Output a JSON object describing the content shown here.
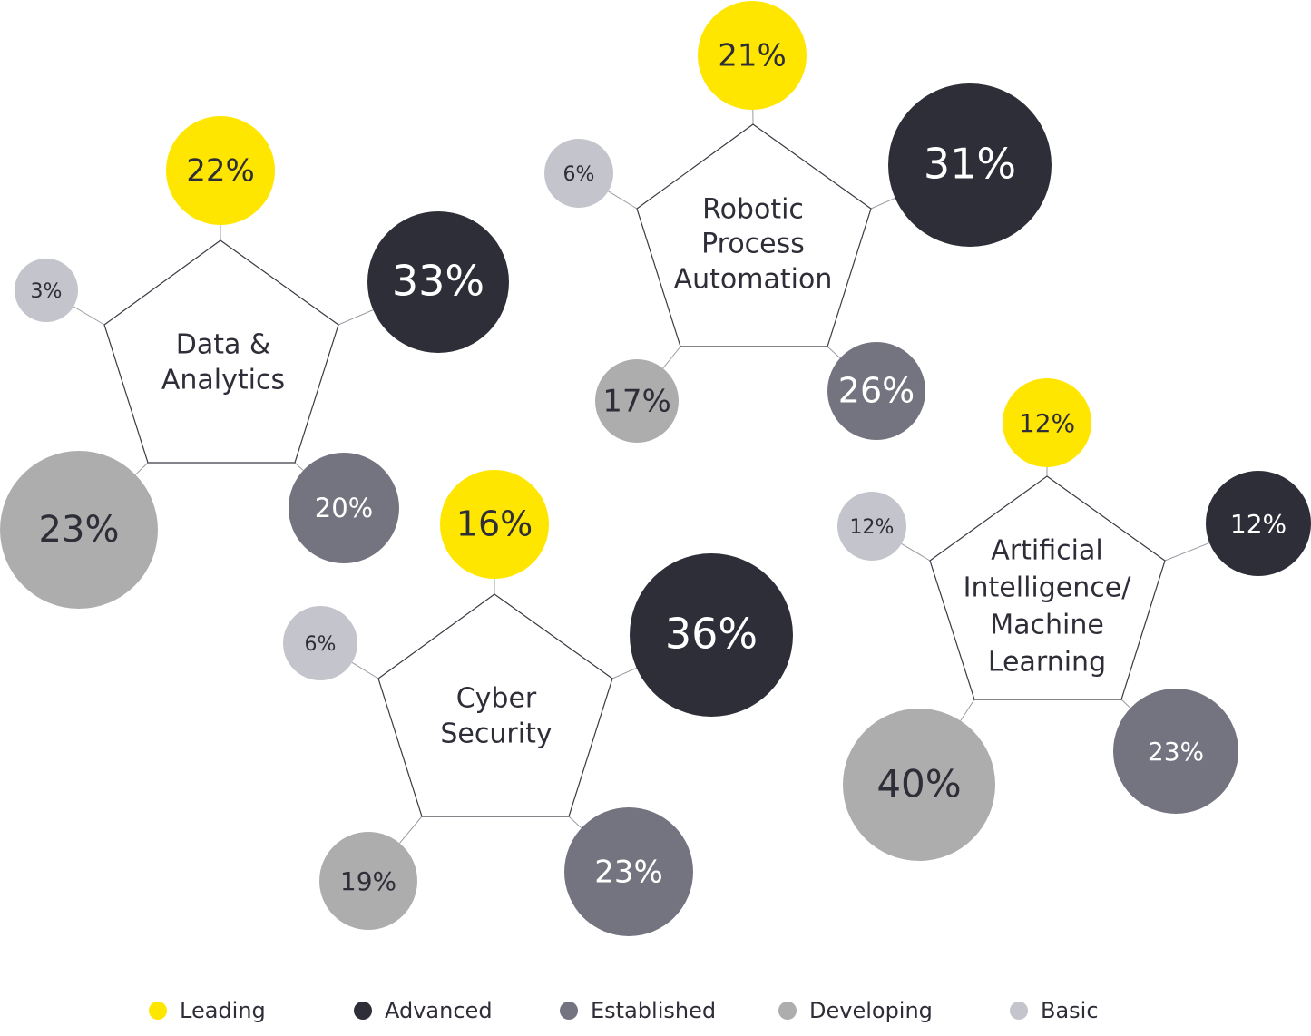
{
  "colors": {
    "Leading": "#FFE600",
    "Advanced": "#2E2E38",
    "Established": "#747480",
    "Developing": "#ADADAD",
    "Basic": "#C4C4CD"
  },
  "legend": [
    "Leading",
    "Advanced",
    "Established",
    "Developing",
    "Basic"
  ],
  "chart_data": {
    "type": "bubble-pentagon",
    "categories": [
      "Leading",
      "Advanced",
      "Established",
      "Developing",
      "Basic"
    ],
    "groups": [
      {
        "name": "Data & Analytics",
        "label_lines": [
          "Data &",
          "Analytics"
        ],
        "values": [
          22,
          33,
          20,
          23,
          3
        ]
      },
      {
        "name": "Robotic Process Automation",
        "label_lines": [
          "Robotic",
          "Process",
          "Automation"
        ],
        "values": [
          21,
          31,
          26,
          17,
          6
        ]
      },
      {
        "name": "Cyber Security",
        "label_lines": [
          "Cyber",
          "Security"
        ],
        "values": [
          16,
          36,
          23,
          19,
          6
        ]
      },
      {
        "name": "Artificial Intelligence/ Machine Learning",
        "label_lines": [
          "Artificial",
          "Intelligence/",
          "Machine",
          "Learning"
        ],
        "values": [
          12,
          12,
          23,
          40,
          12
        ]
      }
    ],
    "unit": "%"
  }
}
